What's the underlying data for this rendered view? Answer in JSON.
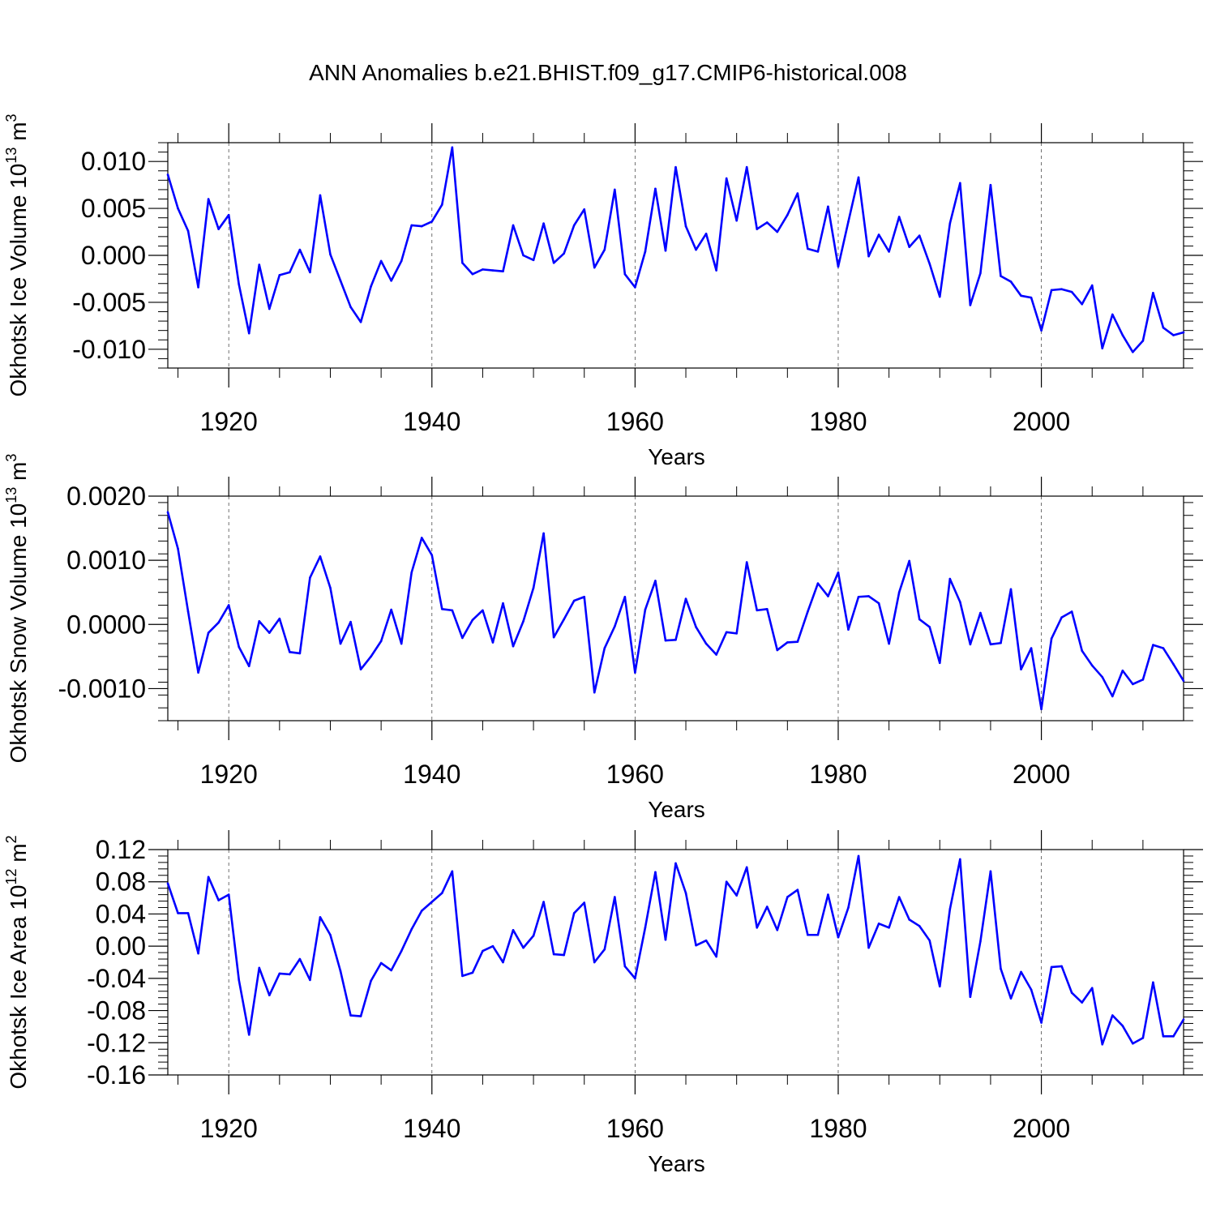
{
  "figure_title": "ANN Anomalies b.e21.BHIST.f09_g17.CMIP6-historical.008",
  "line_color": "#0000ff",
  "chart_data": [
    {
      "type": "line",
      "title": "ANN Anomalies b.e21.BHIST.f09_g17.CMIP6-historical.008",
      "xlabel": "Years",
      "ylabel": "Okhotsk Ice Volume",
      "ylabel_unit": [
        "10",
        "13",
        " m",
        "3"
      ],
      "xlim": [
        1914,
        2014
      ],
      "ylim": [
        -0.012,
        0.012
      ],
      "yticks": [
        -0.01,
        -0.005,
        0.0,
        0.005,
        0.01
      ],
      "ytick_labels": [
        "-0.010",
        "-0.005",
        "0.000",
        "0.005",
        "0.010"
      ],
      "xticks": [
        1920,
        1940,
        1960,
        1980,
        2000
      ],
      "xtick_labels": [
        "1920",
        "1940",
        "1960",
        "1980",
        "2000"
      ],
      "grid": "dashed vertical lines at x ticks",
      "x_start": 1914,
      "values": [
        0.0086,
        0.005,
        0.0026,
        -0.0034,
        0.006,
        0.0028,
        0.0043,
        -0.0031,
        -0.0083,
        -0.001,
        -0.0057,
        -0.0021,
        -0.0018,
        0.0006,
        -0.0018,
        0.0064,
        0.0001,
        -0.0027,
        -0.0055,
        -0.0071,
        -0.0033,
        -0.0006,
        -0.0027,
        -0.0006,
        0.0032,
        0.0031,
        0.0036,
        0.0054,
        0.0115,
        -0.0008,
        -0.002,
        -0.0015,
        -0.0016,
        -0.0017,
        0.0032,
        0.0,
        -0.0005,
        0.0034,
        -0.0008,
        0.0002,
        0.0032,
        0.0049,
        -0.0013,
        0.0006,
        0.007,
        -0.002,
        -0.0034,
        0.0004,
        0.0071,
        0.0005,
        0.0094,
        0.0031,
        0.0006,
        0.0023,
        -0.0016,
        0.0082,
        0.0037,
        0.0094,
        0.0028,
        0.0035,
        0.0025,
        0.0043,
        0.0066,
        0.0007,
        0.0004,
        0.0052,
        -0.0012,
        0.0036,
        0.0083,
        -0.0001,
        0.0022,
        0.0004,
        0.0041,
        0.0009,
        0.0021,
        -0.0009,
        -0.0044,
        0.0034,
        0.0077,
        -0.0053,
        -0.0019,
        0.0075,
        -0.0022,
        -0.0028,
        -0.0043,
        -0.0045,
        -0.008,
        -0.0037,
        -0.0036,
        -0.0039,
        -0.0052,
        -0.0032,
        -0.0099,
        -0.0063,
        -0.0085,
        -0.0103,
        -0.0091,
        -0.004,
        -0.0077,
        -0.0085,
        -0.0082
      ]
    },
    {
      "type": "line",
      "title": "",
      "xlabel": "Years",
      "ylabel": "Okhotsk Snow Volume",
      "ylabel_unit": [
        "10",
        "13",
        " m",
        "3"
      ],
      "xlim": [
        1914,
        2014
      ],
      "ylim": [
        -0.0015,
        0.002
      ],
      "yticks": [
        -0.001,
        0.0,
        0.001,
        0.002
      ],
      "ytick_labels": [
        "-0.0010",
        "0.0000",
        "0.0010",
        "0.0020"
      ],
      "xticks": [
        1920,
        1940,
        1960,
        1980,
        2000
      ],
      "xtick_labels": [
        "1920",
        "1940",
        "1960",
        "1980",
        "2000"
      ],
      "grid": "dashed vertical lines at x ticks",
      "x_start": 1914,
      "values": [
        0.00175,
        0.00118,
        0.0002,
        -0.00075,
        -0.00013,
        3e-05,
        0.0003,
        -0.00035,
        -0.00065,
        5e-05,
        -0.00013,
        9e-05,
        -0.00043,
        -0.00045,
        0.00073,
        0.00106,
        0.00057,
        -0.0003,
        4e-05,
        -0.0007,
        -0.0005,
        -0.00026,
        0.00023,
        -0.0003,
        0.00081,
        0.00135,
        0.00108,
        0.00024,
        0.00022,
        -0.00021,
        7e-05,
        0.00022,
        -0.00028,
        0.00033,
        -0.00034,
        5e-05,
        0.00057,
        0.00142,
        -0.0002,
        8e-05,
        0.00037,
        0.00043,
        -0.00106,
        -0.00037,
        -3e-05,
        0.00043,
        -0.00075,
        0.00023,
        0.00068,
        -0.00025,
        -0.00024,
        0.0004,
        -4e-05,
        -0.0003,
        -0.00047,
        -0.00012,
        -0.00014,
        0.00097,
        0.00022,
        0.00024,
        -0.0004,
        -0.00028,
        -0.00027,
        0.0002,
        0.00064,
        0.00044,
        0.00081,
        -8e-05,
        0.00043,
        0.00044,
        0.00033,
        -0.0003,
        0.0005,
        0.00099,
        8e-05,
        -4e-05,
        -0.0006,
        0.00071,
        0.00035,
        -0.00031,
        0.00018,
        -0.00031,
        -0.00029,
        0.00055,
        -0.0007,
        -0.00037,
        -0.00132,
        -0.00022,
        0.00011,
        0.0002,
        -0.00041,
        -0.00064,
        -0.00082,
        -0.00112,
        -0.00072,
        -0.00093,
        -0.00086,
        -0.00032,
        -0.00037,
        -0.00062,
        -0.00088
      ]
    },
    {
      "type": "line",
      "title": "",
      "xlabel": "Years",
      "ylabel": "Okhotsk Ice Area",
      "ylabel_unit": [
        "10",
        "12",
        " m",
        "2"
      ],
      "xlim": [
        1914,
        2014
      ],
      "ylim": [
        -0.16,
        0.12
      ],
      "yticks": [
        -0.16,
        -0.12,
        -0.08,
        -0.04,
        0.0,
        0.04,
        0.08,
        0.12
      ],
      "ytick_labels": [
        "-0.16",
        "-0.12",
        "-0.08",
        "-0.04",
        "0.00",
        "0.04",
        "0.08",
        "0.12"
      ],
      "xticks": [
        1920,
        1940,
        1960,
        1980,
        2000
      ],
      "xtick_labels": [
        "1920",
        "1940",
        "1960",
        "1980",
        "2000"
      ],
      "grid": "dashed vertical lines at x ticks",
      "x_start": 1914,
      "values": [
        0.078,
        0.041,
        0.041,
        -0.009,
        0.086,
        0.057,
        0.064,
        -0.042,
        -0.11,
        -0.027,
        -0.061,
        -0.034,
        -0.035,
        -0.016,
        -0.042,
        0.036,
        0.014,
        -0.031,
        -0.086,
        -0.087,
        -0.043,
        -0.021,
        -0.03,
        -0.006,
        0.021,
        0.044,
        0.055,
        0.066,
        0.093,
        -0.037,
        -0.033,
        -0.006,
        0.0,
        -0.02,
        0.02,
        -0.002,
        0.013,
        0.055,
        -0.01,
        -0.011,
        0.041,
        0.054,
        -0.02,
        -0.004,
        0.061,
        -0.025,
        -0.04,
        0.023,
        0.092,
        0.008,
        0.103,
        0.066,
        0.001,
        0.007,
        -0.013,
        0.08,
        0.063,
        0.098,
        0.023,
        0.049,
        0.02,
        0.061,
        0.07,
        0.014,
        0.014,
        0.064,
        0.011,
        0.048,
        0.112,
        -0.002,
        0.028,
        0.023,
        0.061,
        0.033,
        0.025,
        0.007,
        -0.05,
        0.046,
        0.108,
        -0.063,
        0.006,
        0.093,
        -0.028,
        -0.065,
        -0.032,
        -0.054,
        -0.095,
        -0.026,
        -0.025,
        -0.058,
        -0.07,
        -0.052,
        -0.122,
        -0.086,
        -0.099,
        -0.121,
        -0.114,
        -0.045,
        -0.112,
        -0.112,
        -0.091
      ]
    }
  ]
}
